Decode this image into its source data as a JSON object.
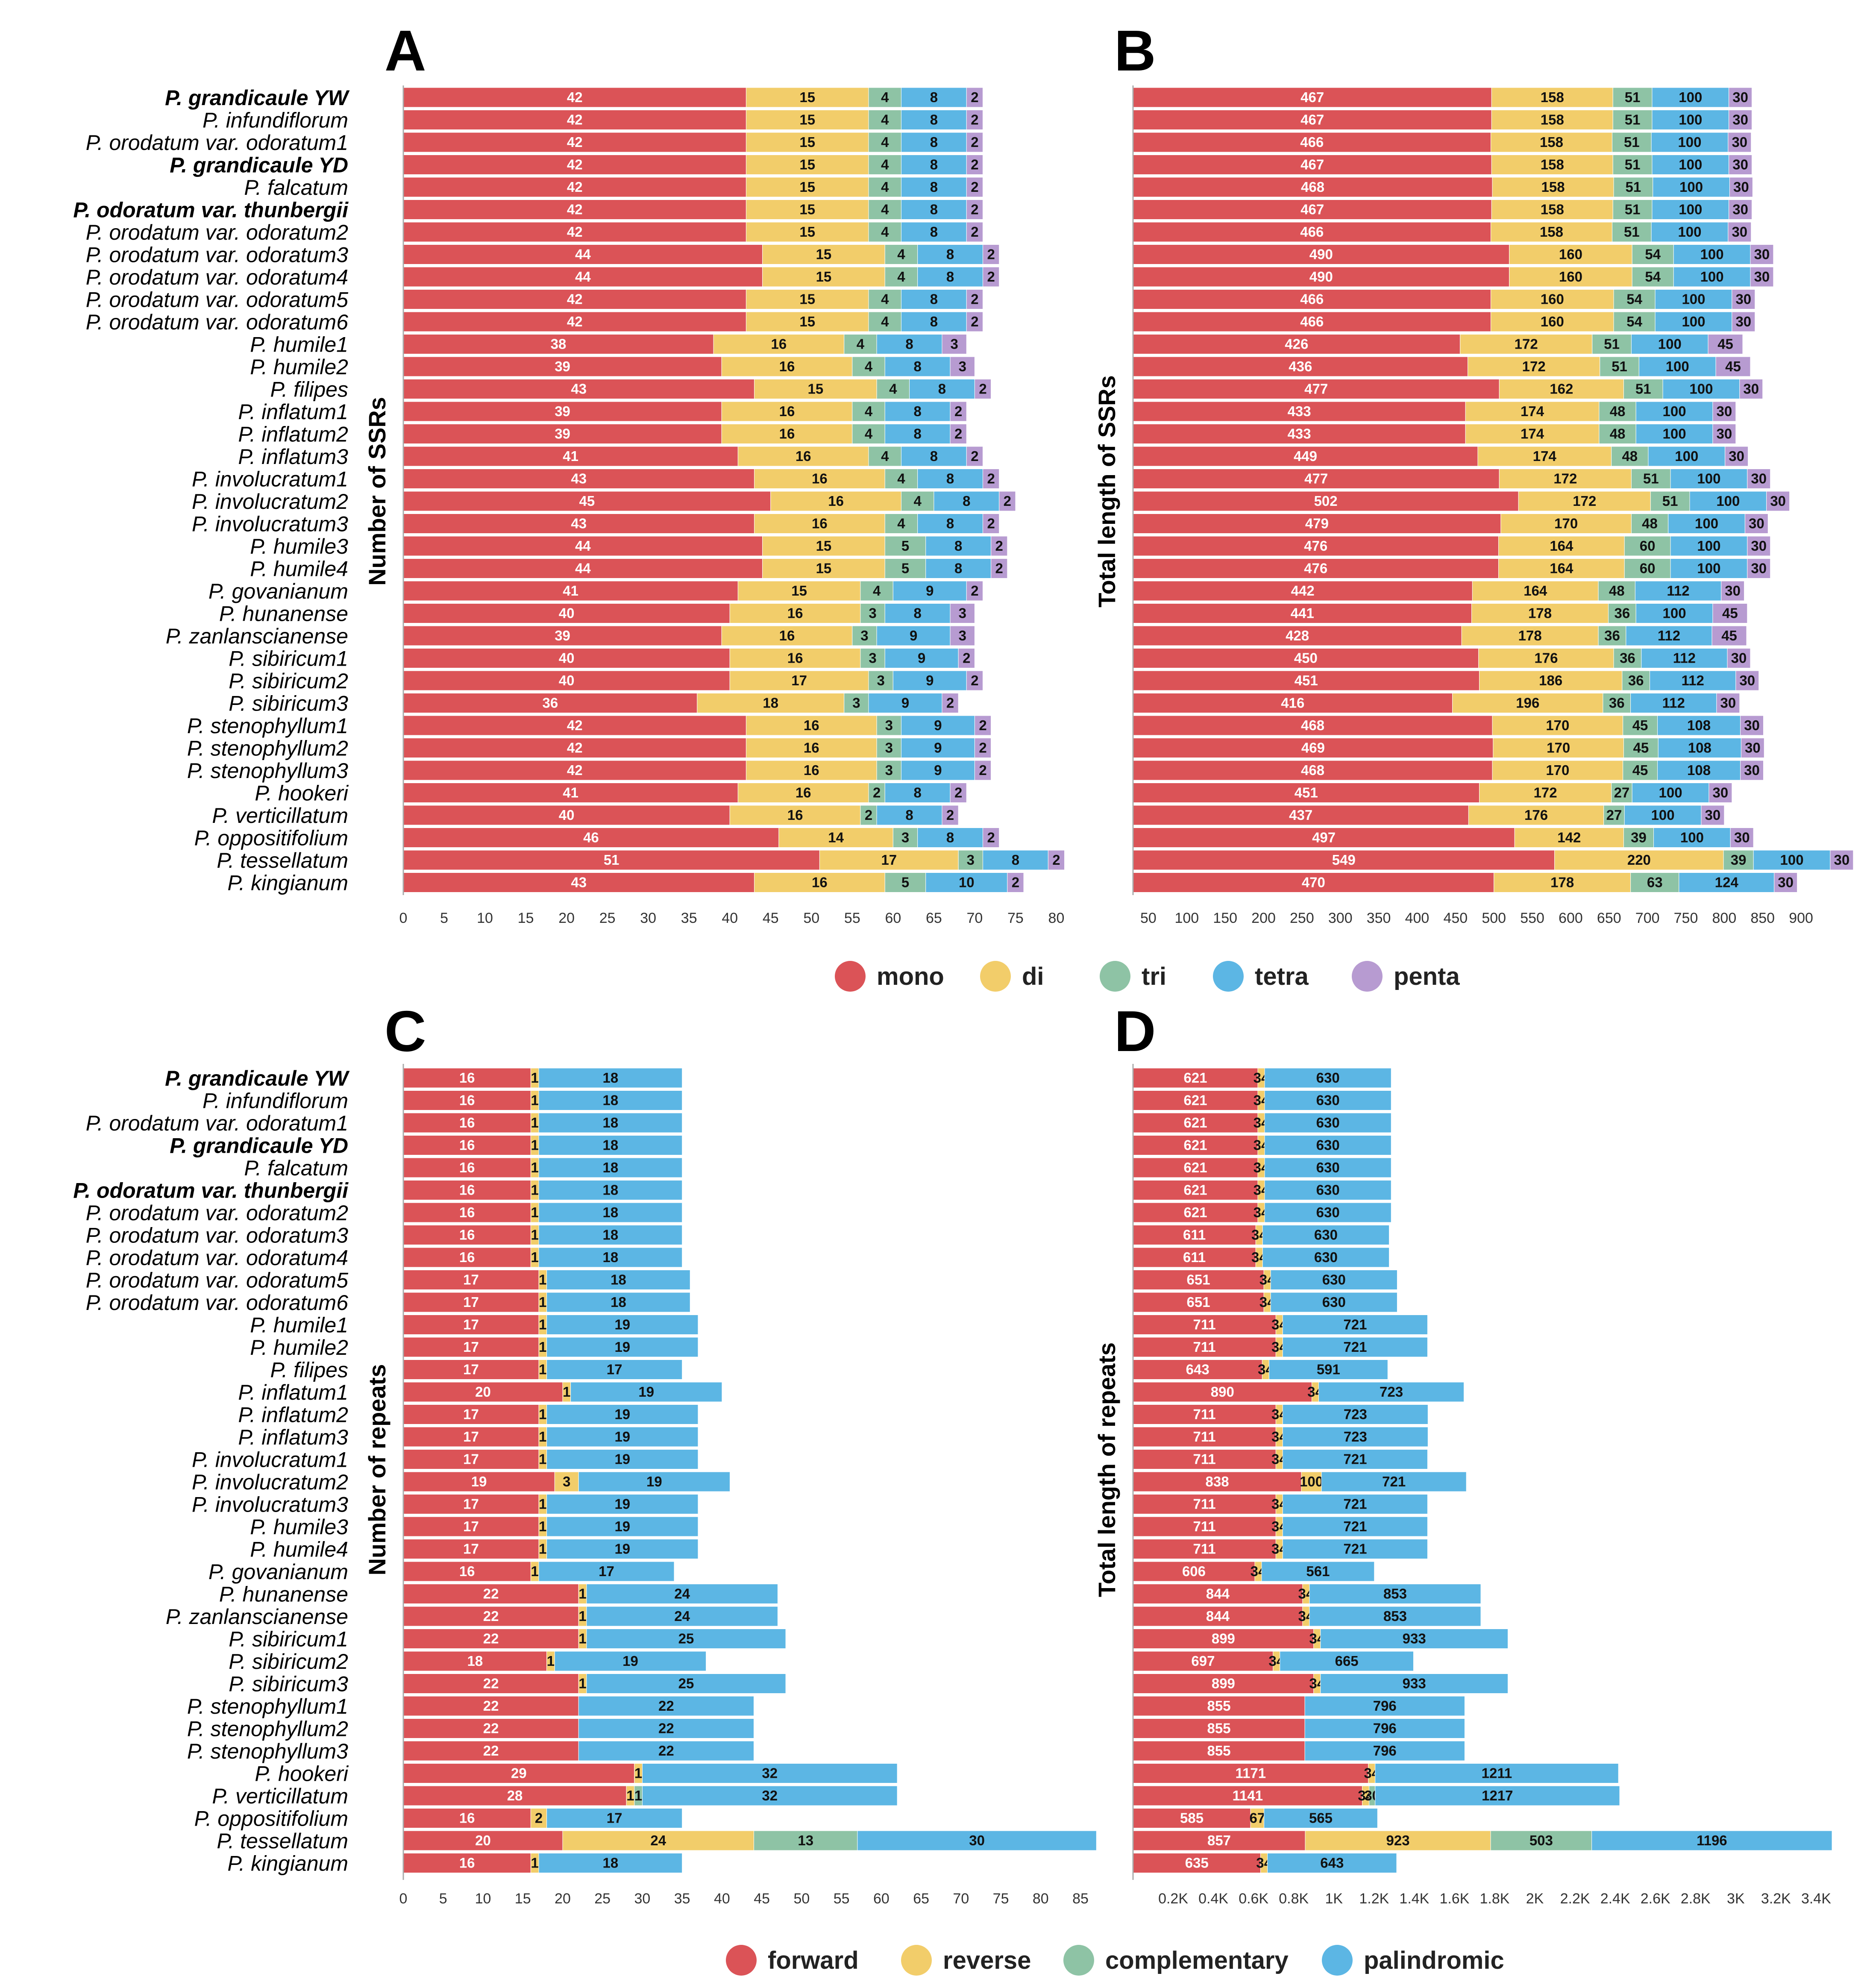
{
  "colors": {
    "mono": "#DB5357",
    "di": "#F2CD6A",
    "tri": "#8EC3A5",
    "tetra": "#5CB6E4",
    "penta": "#B79BD1",
    "forward": "#DB5357",
    "reverse": "#F2CD6A",
    "complementary": "#8EC3A5",
    "palindromic": "#5CB6E4"
  },
  "species": [
    {
      "label": "P. grandicaule YW",
      "bold": true
    },
    {
      "label": "P. infundiflorum",
      "bold": false
    },
    {
      "label": "P. orodatum var. odoratum1",
      "bold": false
    },
    {
      "label": "P. grandicaule YD",
      "bold": true
    },
    {
      "label": "P. falcatum",
      "bold": false
    },
    {
      "label": "P. odoratum var. thunbergii",
      "bold": true
    },
    {
      "label": "P. orodatum var. odoratum2",
      "bold": false
    },
    {
      "label": "P. orodatum var. odoratum3",
      "bold": false
    },
    {
      "label": "P. orodatum var. odoratum4",
      "bold": false
    },
    {
      "label": "P. orodatum var. odoratum5",
      "bold": false
    },
    {
      "label": "P. orodatum var. odoratum6",
      "bold": false
    },
    {
      "label": "P. humile1",
      "bold": false
    },
    {
      "label": "P. humile2",
      "bold": false
    },
    {
      "label": "P. filipes",
      "bold": false
    },
    {
      "label": "P. inflatum1",
      "bold": false
    },
    {
      "label": "P. inflatum2",
      "bold": false
    },
    {
      "label": "P. inflatum3",
      "bold": false
    },
    {
      "label": "P. involucratum1",
      "bold": false
    },
    {
      "label": "P. involucratum2",
      "bold": false
    },
    {
      "label": "P. involucratum3",
      "bold": false
    },
    {
      "label": "P. humile3",
      "bold": false
    },
    {
      "label": "P. humile4",
      "bold": false
    },
    {
      "label": "P. govanianum",
      "bold": false
    },
    {
      "label": "P. hunanense",
      "bold": false
    },
    {
      "label": "P. zanlanscianense",
      "bold": false
    },
    {
      "label": "P. sibiricum1",
      "bold": false
    },
    {
      "label": "P. sibiricum2",
      "bold": false
    },
    {
      "label": "P. sibiricum3",
      "bold": false
    },
    {
      "label": "P. stenophyllum1",
      "bold": false
    },
    {
      "label": "P. stenophyllum2",
      "bold": false
    },
    {
      "label": "P. stenophyllum3",
      "bold": false
    },
    {
      "label": "P. hookeri",
      "bold": false
    },
    {
      "label": "P. verticillatum",
      "bold": false
    },
    {
      "label": "P. oppositifolium",
      "bold": false
    },
    {
      "label": "P. tessellatum",
      "bold": false
    },
    {
      "label": "P. kingianum",
      "bold": false
    }
  ],
  "legends": {
    "top": [
      {
        "key": "mono",
        "label": "mono"
      },
      {
        "key": "di",
        "label": "di"
      },
      {
        "key": "tri",
        "label": "tri"
      },
      {
        "key": "tetra",
        "label": "tetra"
      },
      {
        "key": "penta",
        "label": "penta"
      }
    ],
    "bottom": [
      {
        "key": "forward",
        "label": "forward"
      },
      {
        "key": "reverse",
        "label": "reverse"
      },
      {
        "key": "complementary",
        "label": "complementary"
      },
      {
        "key": "palindromic",
        "label": "palindromic"
      }
    ]
  },
  "chart_data": [
    {
      "id": "A",
      "type": "bar",
      "orientation": "horizontal",
      "stacked": true,
      "ylabel": "Number of SSRs",
      "series_keys": [
        "mono",
        "di",
        "tri",
        "tetra",
        "penta"
      ],
      "xlim": [
        0,
        85
      ],
      "ticks": [
        "0",
        "5",
        "10",
        "15",
        "20",
        "25",
        "30",
        "35",
        "40",
        "45",
        "50",
        "55",
        "60",
        "65",
        "70",
        "75",
        "80"
      ],
      "tick_values": [
        0,
        5,
        10,
        15,
        20,
        25,
        30,
        35,
        40,
        45,
        50,
        55,
        60,
        65,
        70,
        75,
        80
      ],
      "values": [
        [
          42,
          15,
          4,
          8,
          2
        ],
        [
          42,
          15,
          4,
          8,
          2
        ],
        [
          42,
          15,
          4,
          8,
          2
        ],
        [
          42,
          15,
          4,
          8,
          2
        ],
        [
          42,
          15,
          4,
          8,
          2
        ],
        [
          42,
          15,
          4,
          8,
          2
        ],
        [
          42,
          15,
          4,
          8,
          2
        ],
        [
          44,
          15,
          4,
          8,
          2
        ],
        [
          44,
          15,
          4,
          8,
          2
        ],
        [
          42,
          15,
          4,
          8,
          2
        ],
        [
          42,
          15,
          4,
          8,
          2
        ],
        [
          38,
          16,
          4,
          8,
          3
        ],
        [
          39,
          16,
          4,
          8,
          3
        ],
        [
          43,
          15,
          4,
          8,
          2
        ],
        [
          39,
          16,
          4,
          8,
          2
        ],
        [
          39,
          16,
          4,
          8,
          2
        ],
        [
          41,
          16,
          4,
          8,
          2
        ],
        [
          43,
          16,
          4,
          8,
          2
        ],
        [
          45,
          16,
          4,
          8,
          2
        ],
        [
          43,
          16,
          4,
          8,
          2
        ],
        [
          44,
          15,
          5,
          8,
          2
        ],
        [
          44,
          15,
          5,
          8,
          2
        ],
        [
          41,
          15,
          4,
          9,
          2
        ],
        [
          40,
          16,
          3,
          8,
          3
        ],
        [
          39,
          16,
          3,
          9,
          3
        ],
        [
          40,
          16,
          3,
          9,
          2
        ],
        [
          40,
          17,
          3,
          9,
          2
        ],
        [
          36,
          18,
          3,
          9,
          2
        ],
        [
          42,
          16,
          3,
          9,
          2
        ],
        [
          42,
          16,
          3,
          9,
          2
        ],
        [
          42,
          16,
          3,
          9,
          2
        ],
        [
          41,
          16,
          2,
          8,
          2
        ],
        [
          40,
          16,
          2,
          8,
          2
        ],
        [
          46,
          14,
          3,
          8,
          2
        ],
        [
          51,
          17,
          3,
          8,
          2
        ],
        [
          43,
          16,
          5,
          10,
          2
        ]
      ]
    },
    {
      "id": "B",
      "type": "bar",
      "orientation": "horizontal",
      "stacked": true,
      "ylabel": "Total length of SSRs",
      "series_keys": [
        "mono",
        "di",
        "tri",
        "tetra",
        "penta"
      ],
      "xlim": [
        30,
        972
      ],
      "ticks": [
        "50",
        "100",
        "150",
        "200",
        "250",
        "300",
        "350",
        "400",
        "450",
        "500",
        "550",
        "600",
        "650",
        "700",
        "750",
        "800",
        "850",
        "900"
      ],
      "tick_values": [
        50,
        100,
        150,
        200,
        250,
        300,
        350,
        400,
        450,
        500,
        550,
        600,
        650,
        700,
        750,
        800,
        850,
        900
      ],
      "values": [
        [
          467,
          158,
          51,
          100,
          30
        ],
        [
          467,
          158,
          51,
          100,
          30
        ],
        [
          466,
          158,
          51,
          100,
          30
        ],
        [
          467,
          158,
          51,
          100,
          30
        ],
        [
          468,
          158,
          51,
          100,
          30
        ],
        [
          467,
          158,
          51,
          100,
          30
        ],
        [
          466,
          158,
          51,
          100,
          30
        ],
        [
          490,
          160,
          54,
          100,
          30
        ],
        [
          490,
          160,
          54,
          100,
          30
        ],
        [
          466,
          160,
          54,
          100,
          30
        ],
        [
          466,
          160,
          54,
          100,
          30
        ],
        [
          426,
          172,
          51,
          100,
          45
        ],
        [
          436,
          172,
          51,
          100,
          45
        ],
        [
          477,
          162,
          51,
          100,
          30
        ],
        [
          433,
          174,
          48,
          100,
          30
        ],
        [
          433,
          174,
          48,
          100,
          30
        ],
        [
          449,
          174,
          48,
          100,
          30
        ],
        [
          477,
          172,
          51,
          100,
          30
        ],
        [
          502,
          172,
          51,
          100,
          30
        ],
        [
          479,
          170,
          48,
          100,
          30
        ],
        [
          476,
          164,
          60,
          100,
          30
        ],
        [
          476,
          164,
          60,
          100,
          30
        ],
        [
          442,
          164,
          48,
          112,
          30
        ],
        [
          441,
          178,
          36,
          100,
          45
        ],
        [
          428,
          178,
          36,
          112,
          45
        ],
        [
          450,
          176,
          36,
          112,
          30
        ],
        [
          451,
          186,
          36,
          112,
          30
        ],
        [
          416,
          196,
          36,
          112,
          30
        ],
        [
          468,
          170,
          45,
          108,
          30
        ],
        [
          469,
          170,
          45,
          108,
          30
        ],
        [
          468,
          170,
          45,
          108,
          30
        ],
        [
          451,
          172,
          27,
          100,
          30
        ],
        [
          437,
          176,
          27,
          100,
          30
        ],
        [
          497,
          142,
          39,
          100,
          30
        ],
        [
          549,
          220,
          39,
          100,
          30
        ],
        [
          470,
          178,
          63,
          124,
          30
        ]
      ]
    },
    {
      "id": "C",
      "type": "bar",
      "orientation": "horizontal",
      "stacked": true,
      "ylabel": "Number of repeats",
      "series_keys": [
        "forward",
        "reverse",
        "complementary",
        "palindromic"
      ],
      "xlim": [
        0,
        88
      ],
      "ticks": [
        "0",
        "5",
        "10",
        "15",
        "20",
        "25",
        "30",
        "35",
        "40",
        "45",
        "50",
        "55",
        "60",
        "65",
        "70",
        "75",
        "80",
        "85"
      ],
      "tick_values": [
        0,
        5,
        10,
        15,
        20,
        25,
        30,
        35,
        40,
        45,
        50,
        55,
        60,
        65,
        70,
        75,
        80,
        85
      ],
      "values": [
        [
          16,
          1,
          0,
          18
        ],
        [
          16,
          1,
          0,
          18
        ],
        [
          16,
          1,
          0,
          18
        ],
        [
          16,
          1,
          0,
          18
        ],
        [
          16,
          1,
          0,
          18
        ],
        [
          16,
          1,
          0,
          18
        ],
        [
          16,
          1,
          0,
          18
        ],
        [
          16,
          1,
          0,
          18
        ],
        [
          16,
          1,
          0,
          18
        ],
        [
          17,
          1,
          0,
          18
        ],
        [
          17,
          1,
          0,
          18
        ],
        [
          17,
          1,
          0,
          19
        ],
        [
          17,
          1,
          0,
          19
        ],
        [
          17,
          1,
          0,
          17
        ],
        [
          20,
          1,
          0,
          19
        ],
        [
          17,
          1,
          0,
          19
        ],
        [
          17,
          1,
          0,
          19
        ],
        [
          17,
          1,
          0,
          19
        ],
        [
          19,
          3,
          0,
          19
        ],
        [
          17,
          1,
          0,
          19
        ],
        [
          17,
          1,
          0,
          19
        ],
        [
          17,
          1,
          0,
          19
        ],
        [
          16,
          1,
          0,
          17
        ],
        [
          22,
          1,
          0,
          24
        ],
        [
          22,
          1,
          0,
          24
        ],
        [
          22,
          1,
          0,
          25
        ],
        [
          18,
          1,
          0,
          19
        ],
        [
          22,
          1,
          0,
          25
        ],
        [
          22,
          0,
          0,
          22
        ],
        [
          22,
          0,
          0,
          22
        ],
        [
          22,
          0,
          0,
          22
        ],
        [
          29,
          1,
          0,
          32
        ],
        [
          28,
          1,
          1,
          32
        ],
        [
          16,
          2,
          0,
          17
        ],
        [
          20,
          24,
          13,
          30
        ],
        [
          16,
          1,
          0,
          18
        ]
      ]
    },
    {
      "id": "D",
      "type": "bar",
      "orientation": "horizontal",
      "stacked": true,
      "ylabel": "Total length of repeats",
      "series_keys": [
        "forward",
        "reverse",
        "complementary",
        "palindromic"
      ],
      "xlim": [
        0,
        3600
      ],
      "ticks": [
        "0.2K",
        "0.4K",
        "0.6K",
        "0.8K",
        "1K",
        "1.2K",
        "1.4K",
        "1.6K",
        "1.8K",
        "2K",
        "2.2K",
        "2.4K",
        "2.6K",
        "2.8K",
        "3K",
        "3.2K",
        "3.4K"
      ],
      "tick_values": [
        200,
        400,
        600,
        800,
        1000,
        1200,
        1400,
        1600,
        1800,
        2000,
        2200,
        2400,
        2600,
        2800,
        3000,
        3200,
        3400
      ],
      "values": [
        [
          621,
          34,
          0,
          630
        ],
        [
          621,
          34,
          0,
          630
        ],
        [
          621,
          34,
          0,
          630
        ],
        [
          621,
          34,
          0,
          630
        ],
        [
          621,
          34,
          0,
          630
        ],
        [
          621,
          34,
          0,
          630
        ],
        [
          621,
          34,
          0,
          630
        ],
        [
          611,
          34,
          0,
          630
        ],
        [
          611,
          34,
          0,
          630
        ],
        [
          651,
          34,
          0,
          630
        ],
        [
          651,
          34,
          0,
          630
        ],
        [
          711,
          34,
          0,
          721
        ],
        [
          711,
          34,
          0,
          721
        ],
        [
          643,
          34,
          0,
          591
        ],
        [
          890,
          34,
          0,
          723
        ],
        [
          711,
          34,
          0,
          723
        ],
        [
          711,
          34,
          0,
          723
        ],
        [
          711,
          34,
          0,
          721
        ],
        [
          838,
          100,
          0,
          721
        ],
        [
          711,
          34,
          0,
          721
        ],
        [
          711,
          34,
          0,
          721
        ],
        [
          711,
          34,
          0,
          721
        ],
        [
          606,
          34,
          0,
          561
        ],
        [
          844,
          34,
          0,
          853
        ],
        [
          844,
          34,
          0,
          853
        ],
        [
          899,
          34,
          0,
          933
        ],
        [
          697,
          34,
          0,
          665
        ],
        [
          899,
          34,
          0,
          933
        ],
        [
          855,
          0,
          0,
          796
        ],
        [
          855,
          0,
          0,
          796
        ],
        [
          855,
          0,
          0,
          796
        ],
        [
          1171,
          34,
          0,
          1211
        ],
        [
          1141,
          34,
          30,
          1217
        ],
        [
          585,
          67,
          0,
          565
        ],
        [
          857,
          923,
          503,
          1196
        ],
        [
          635,
          34,
          0,
          643
        ]
      ]
    }
  ]
}
